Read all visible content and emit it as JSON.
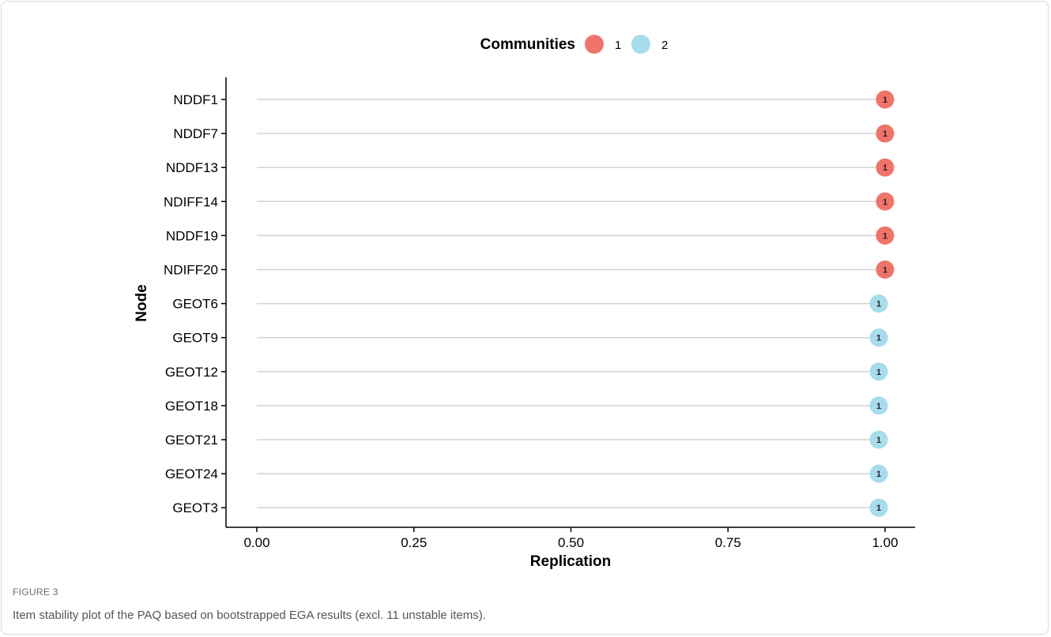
{
  "figure": {
    "label": "FIGURE 3",
    "caption": "Item stability plot of the PAQ based on bootstrapped EGA results (excl. 11 unstable items)."
  },
  "chart_data": {
    "type": "scatter",
    "xlabel": "Replication",
    "ylabel": "Node",
    "xlim": [
      0,
      1
    ],
    "x_ticks": [
      "0.00",
      "0.25",
      "0.50",
      "0.75",
      "1.00"
    ],
    "grid": false,
    "legend": {
      "title": "Communities",
      "position": "top",
      "entries": [
        "1",
        "2"
      ]
    },
    "colors": {
      "1": "#f0736a",
      "2": "#a6dcec"
    },
    "point_label": "1",
    "nodes": [
      {
        "name": "NDDF1",
        "community": "1",
        "replication": 1.0
      },
      {
        "name": "NDDF7",
        "community": "1",
        "replication": 1.0
      },
      {
        "name": "NDDF13",
        "community": "1",
        "replication": 1.0
      },
      {
        "name": "NDIFF14",
        "community": "1",
        "replication": 1.0
      },
      {
        "name": "NDDF19",
        "community": "1",
        "replication": 1.0
      },
      {
        "name": "NDIFF20",
        "community": "1",
        "replication": 1.0
      },
      {
        "name": "GEOT6",
        "community": "2",
        "replication": 0.99
      },
      {
        "name": "GEOT9",
        "community": "2",
        "replication": 0.99
      },
      {
        "name": "GEOT12",
        "community": "2",
        "replication": 0.99
      },
      {
        "name": "GEOT18",
        "community": "2",
        "replication": 0.99
      },
      {
        "name": "GEOT21",
        "community": "2",
        "replication": 0.99
      },
      {
        "name": "GEOT24",
        "community": "2",
        "replication": 0.99
      },
      {
        "name": "GEOT3",
        "community": "2",
        "replication": 0.99
      }
    ]
  }
}
